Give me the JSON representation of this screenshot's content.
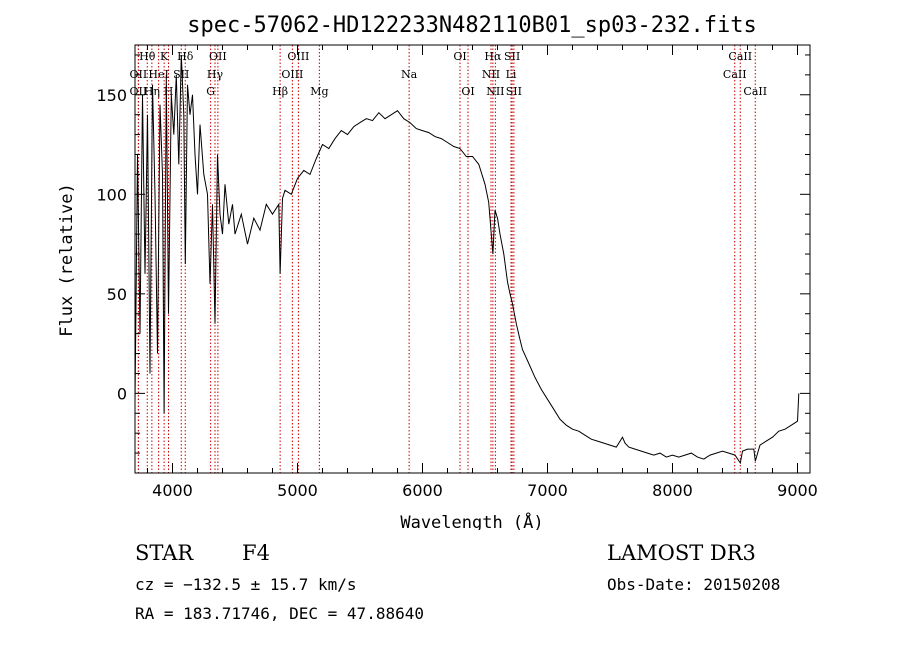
{
  "chart_data": {
    "type": "line",
    "title": "spec-57062-HD122233N482110B01_sp03-232.fits",
    "xlabel": "Wavelength (Å)",
    "ylabel": "Flux (relative)",
    "xlim": [
      3700,
      9100
    ],
    "ylim": [
      -40,
      175
    ],
    "xticks": [
      {
        "v": 4000,
        "label": "4000"
      },
      {
        "v": 5000,
        "label": "5000"
      },
      {
        "v": 6000,
        "label": "6000"
      },
      {
        "v": 7000,
        "label": "7000"
      },
      {
        "v": 8000,
        "label": "8000"
      },
      {
        "v": 9000,
        "label": "9000"
      }
    ],
    "yticks": [
      {
        "v": 0,
        "label": "0"
      },
      {
        "v": 50,
        "label": "50"
      },
      {
        "v": 100,
        "label": "100"
      },
      {
        "v": 150,
        "label": "150"
      }
    ],
    "series": [
      {
        "line_color": "#000000",
        "x": [
          3700,
          3720,
          3740,
          3760,
          3780,
          3800,
          3820,
          3840,
          3860,
          3880,
          3900,
          3920,
          3933,
          3950,
          3968,
          3990,
          4010,
          4030,
          4050,
          4070,
          4090,
          4102,
          4120,
          4140,
          4160,
          4180,
          4200,
          4220,
          4250,
          4280,
          4300,
          4320,
          4340,
          4360,
          4380,
          4400,
          4420,
          4450,
          4480,
          4500,
          4550,
          4600,
          4650,
          4700,
          4750,
          4800,
          4850,
          4861,
          4880,
          4900,
          4950,
          5000,
          5050,
          5100,
          5150,
          5200,
          5250,
          5300,
          5350,
          5400,
          5450,
          5500,
          5550,
          5600,
          5650,
          5700,
          5750,
          5800,
          5850,
          5900,
          5950,
          6000,
          6050,
          6100,
          6150,
          6200,
          6250,
          6300,
          6350,
          6400,
          6450,
          6500,
          6530,
          6563,
          6580,
          6600,
          6620,
          6650,
          6680,
          6700,
          6720,
          6750,
          6780,
          6800,
          6850,
          6900,
          6950,
          7000,
          7050,
          7100,
          7150,
          7200,
          7250,
          7300,
          7350,
          7400,
          7450,
          7500,
          7550,
          7600,
          7620,
          7650,
          7700,
          7750,
          7800,
          7850,
          7900,
          7950,
          8000,
          8050,
          8100,
          8150,
          8200,
          8250,
          8300,
          8350,
          8400,
          8450,
          8500,
          8542,
          8560,
          8600,
          8650,
          8662,
          8700,
          8750,
          8800,
          8850,
          8900,
          8950,
          9000,
          9010
        ],
        "y": [
          -5,
          120,
          30,
          150,
          60,
          140,
          10,
          155,
          100,
          20,
          145,
          110,
          -10,
          160,
          40,
          150,
          130,
          160,
          115,
          170,
          140,
          65,
          155,
          140,
          150,
          120,
          100,
          135,
          110,
          100,
          55,
          95,
          35,
          120,
          90,
          80,
          105,
          85,
          95,
          80,
          90,
          75,
          88,
          82,
          95,
          90,
          95,
          60,
          98,
          102,
          100,
          108,
          112,
          110,
          118,
          125,
          123,
          128,
          132,
          130,
          134,
          136,
          138,
          137,
          141,
          138,
          140,
          142,
          138,
          136,
          133,
          132,
          131,
          129,
          128,
          126,
          124,
          123,
          119,
          119,
          115,
          105,
          96,
          70,
          92,
          88,
          80,
          70,
          56,
          50,
          45,
          35,
          27,
          22,
          15,
          8,
          2,
          -3,
          -8,
          -13,
          -16,
          -18,
          -19,
          -21,
          -23,
          -24,
          -25,
          -26,
          -27,
          -22,
          -25,
          -27,
          -28,
          -29,
          -30,
          -31,
          -30,
          -32,
          -31,
          -32,
          -31,
          -30,
          -32,
          -33,
          -31,
          -30,
          -29,
          -30,
          -31,
          -35,
          -29,
          -28,
          -28,
          -34,
          -26,
          -24,
          -22,
          -19,
          -18,
          -16,
          -14,
          0
        ]
      }
    ]
  },
  "lines": [
    {
      "label": "Hθ",
      "x": 3798,
      "row": 1
    },
    {
      "label": "K",
      "x": 3933,
      "row": 1
    },
    {
      "label": "Hδ",
      "x": 4102,
      "row": 1
    },
    {
      "label": "OII",
      "x": 4363,
      "row": 1
    },
    {
      "label": "OIII",
      "x": 5007,
      "row": 1
    },
    {
      "label": "OI",
      "x": 6300,
      "row": 1
    },
    {
      "label": "Hα",
      "x": 6563,
      "row": 1
    },
    {
      "label": "SII",
      "x": 6717,
      "row": 1
    },
    {
      "label": "CaII",
      "x": 8542,
      "row": 1
    },
    {
      "label": "OII",
      "x": 3727,
      "row": 2
    },
    {
      "label": "HeI",
      "x": 3889,
      "row": 2
    },
    {
      "label": "SII",
      "x": 4070,
      "row": 2
    },
    {
      "label": "Hγ",
      "x": 4340,
      "row": 2
    },
    {
      "label": "OIII",
      "x": 4959,
      "row": 2
    },
    {
      "label": "Na",
      "x": 5893,
      "row": 2
    },
    {
      "label": "NII",
      "x": 6548,
      "row": 2
    },
    {
      "label": "Li",
      "x": 6708,
      "row": 2
    },
    {
      "label": "CaII",
      "x": 8498,
      "row": 2
    },
    {
      "label": "OII",
      "x": 3727,
      "row": 3
    },
    {
      "label": "Hη",
      "x": 3835,
      "row": 3
    },
    {
      "label": "H",
      "x": 3968,
      "row": 3
    },
    {
      "label": "G",
      "x": 4305,
      "row": 3
    },
    {
      "label": "Hβ",
      "x": 4861,
      "row": 3
    },
    {
      "label": "Mg",
      "x": 5175,
      "row": 3
    },
    {
      "label": "OI",
      "x": 6364,
      "row": 3
    },
    {
      "label": "NII",
      "x": 6583,
      "row": 3
    },
    {
      "label": "SII",
      "x": 6731,
      "row": 3
    },
    {
      "label": "CaII",
      "x": 8662,
      "row": 3
    }
  ],
  "line_color": "#cc0000",
  "info": {
    "class": "STAR",
    "subclass": "F4",
    "survey": "LAMOST DR3",
    "cz": "cz = −132.5 ± 15.7 km/s",
    "obs_date": "Obs-Date: 20150208",
    "coords": "RA = 183.71746, DEC =  47.88640"
  }
}
